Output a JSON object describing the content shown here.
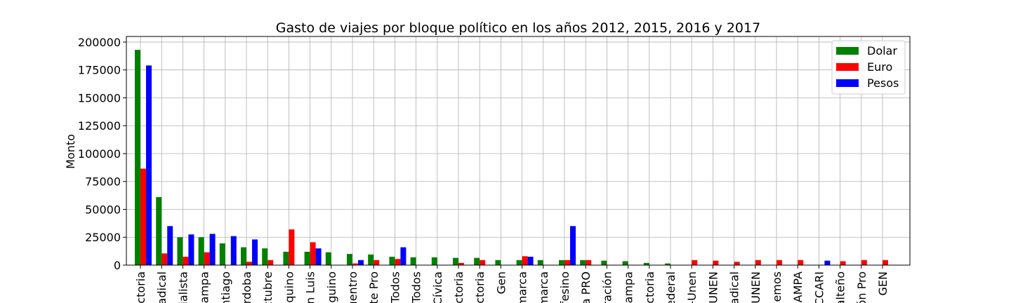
{
  "chart_data": {
    "type": "bar",
    "title": "Gasto de viajes por bloque político en los años 2012, 2015, 2016 y 2017",
    "xlabel": "",
    "ylabel": "Monto",
    "ylim": [
      0,
      205000
    ],
    "yticks": [
      0,
      25000,
      50000,
      75000,
      100000,
      125000,
      150000,
      175000,
      200000
    ],
    "grid": true,
    "legend_position": "top-right",
    "categories": [
      "ctoria",
      "adical",
      "ialista",
      "ampa",
      "ntiago",
      "rdoba",
      "ctubre",
      "quino",
      "n Luis",
      "guino",
      "uentro",
      "te Pro",
      "Todos",
      "Todos",
      "Cívica",
      "ctoria",
      "ctoria",
      "Gen",
      "marca",
      "marca",
      "fesino",
      "a PRO",
      "ración",
      "ampa",
      "ctoria",
      "ederal",
      "-Unen",
      "UNEN",
      "adical",
      "UNEN",
      "iemos",
      "AMPA",
      "CCARI",
      "alteño",
      "ón Pro",
      "GEN"
    ],
    "series": [
      {
        "name": "Dolar",
        "color": "#008000",
        "values": [
          193000,
          61000,
          25000,
          25000,
          19500,
          16000,
          15000,
          12000,
          12000,
          11500,
          10000,
          9500,
          7500,
          7000,
          7000,
          6500,
          6500,
          4500,
          4500,
          4500,
          4500,
          4500,
          4000,
          3500,
          2000,
          1500,
          0,
          0,
          0,
          0,
          0,
          0,
          0,
          0,
          0,
          0
        ]
      },
      {
        "name": "Euro",
        "color": "#ff0000",
        "values": [
          86500,
          10500,
          7500,
          11500,
          0,
          3000,
          4500,
          32000,
          20500,
          0,
          1500,
          4500,
          5500,
          0,
          0,
          2000,
          4500,
          0,
          8000,
          0,
          4500,
          4500,
          0,
          0,
          0,
          0,
          4500,
          4000,
          3000,
          4500,
          4500,
          4500,
          0,
          3500,
          4500,
          4500
        ]
      },
      {
        "name": "Pesos",
        "color": "#0000ff",
        "values": [
          179000,
          35000,
          27500,
          28000,
          26000,
          23000,
          0,
          0,
          15000,
          0,
          4500,
          0,
          16000,
          0,
          0,
          0,
          0,
          0,
          7500,
          0,
          35000,
          0,
          0,
          0,
          0,
          0,
          0,
          0,
          0,
          0,
          0,
          0,
          4000,
          0,
          0,
          0
        ]
      }
    ]
  }
}
